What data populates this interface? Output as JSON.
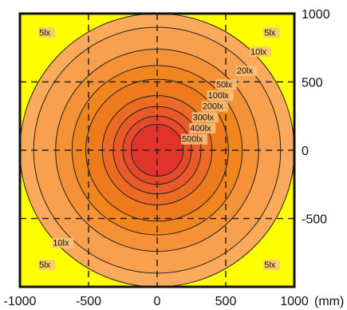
{
  "chart_data": {
    "type": "heatmap",
    "subtype": "illuminance isolux contour",
    "x_unit": "(mm)",
    "xlim": [
      -1000,
      1000
    ],
    "ylim": [
      -1000,
      1000
    ],
    "x_ticks": [
      -1000,
      -500,
      0,
      500,
      1000
    ],
    "y_ticks": [
      -500,
      0,
      500,
      1000
    ],
    "grid": true,
    "grid_style": "dashed",
    "contours": [
      {
        "lux": 5,
        "radius": 1000,
        "fill": "#FAAA5A"
      },
      {
        "lux": 10,
        "radius": 900,
        "fill": "#F8A04E"
      },
      {
        "lux": 20,
        "radius": 740,
        "fill": "#F59238"
      },
      {
        "lux": 50,
        "radius": 620,
        "fill": "#F2861E"
      },
      {
        "lux": 100,
        "radius": 520,
        "fill": "#EF7A1E"
      },
      {
        "lux": 200,
        "radius": 400,
        "fill": "#EC6A24"
      },
      {
        "lux": 300,
        "radius": 320,
        "fill": "#E95A28"
      },
      {
        "lux": 400,
        "radius": 250,
        "fill": "#E64A2A"
      },
      {
        "lux": 500,
        "radius": 190,
        "fill": "#E2342A"
      }
    ],
    "background_fill": "#FFFF00",
    "labels": [
      {
        "text": "5lx",
        "x": -860,
        "y": 840
      },
      {
        "text": "5lx",
        "x": 780,
        "y": 840
      },
      {
        "text": "10lx",
        "x": 680,
        "y": 700
      },
      {
        "text": "20lx",
        "x": 580,
        "y": 560
      },
      {
        "text": "50lx",
        "x": 430,
        "y": 460
      },
      {
        "text": "100lx",
        "x": 370,
        "y": 380
      },
      {
        "text": "200lx",
        "x": 330,
        "y": 300
      },
      {
        "text": "300lx",
        "x": 260,
        "y": 220
      },
      {
        "text": "400lx",
        "x": 240,
        "y": 140
      },
      {
        "text": "500lx",
        "x": 180,
        "y": 60
      },
      {
        "text": "10lx",
        "x": -760,
        "y": -700
      },
      {
        "text": "5lx",
        "x": -860,
        "y": -860
      },
      {
        "text": "5lx",
        "x": 780,
        "y": -860
      }
    ]
  }
}
